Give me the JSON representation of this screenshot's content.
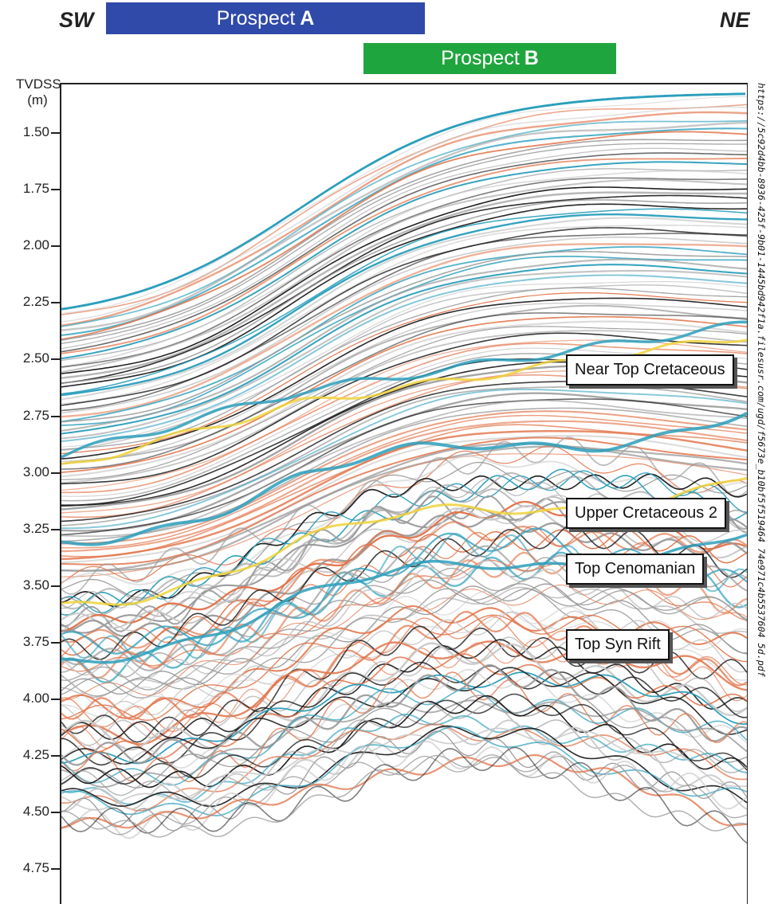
{
  "directions": {
    "left": "SW",
    "right": "NE"
  },
  "prospects": [
    {
      "prefix": "Prospect",
      "letter": "A",
      "color": "#2f4aa8"
    },
    {
      "prefix": "Prospect",
      "letter": "B",
      "color": "#1fa53d"
    }
  ],
  "axis": {
    "title_line1": "TVDSS",
    "title_line2": "(m)",
    "ticks": [
      "1.50",
      "1.75",
      "2.00",
      "2.25",
      "2.50",
      "2.75",
      "3.00",
      "3.25",
      "3.50",
      "3.75",
      "4.00",
      "4.25",
      "4.50",
      "4.75"
    ]
  },
  "horizons": [
    "Near Top Cretaceous",
    "Upper Cretaceous 2",
    "Top Cenomanian",
    "Top Syn Rift"
  ],
  "source_url": "https://5c92d4bb-8936-425f-9b01-1445bd942f1a.filesusr.com/ugd/f5673e_b10bf5f519464 74e971c4b5537604 5d.pdf",
  "colors": {
    "reflector_orange": "#e2744a",
    "reflector_blue": "#2c9fbc",
    "reflector_yellow": "#f0d23a",
    "reflector_black": "#1b1b1b",
    "reflector_grey": "#9a9a9a"
  }
}
